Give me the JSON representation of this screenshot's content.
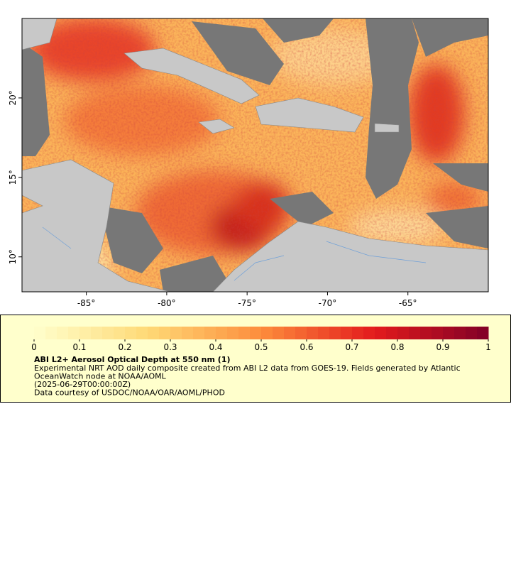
{
  "map": {
    "type": "map",
    "xlim": [
      -89,
      -60
    ],
    "ylim": [
      7.8,
      25
    ],
    "xticks": [
      {
        "value": -85,
        "label": "-85°"
      },
      {
        "value": -80,
        "label": "-80°"
      },
      {
        "value": -75,
        "label": "-75°"
      },
      {
        "value": -70,
        "label": "-70°"
      },
      {
        "value": -65,
        "label": "-65°"
      }
    ],
    "yticks": [
      {
        "value": 10,
        "label": "10°"
      },
      {
        "value": 15,
        "label": "15°"
      },
      {
        "value": 20,
        "label": "20°"
      }
    ]
  },
  "legend": {
    "colorbar": {
      "lim": [
        0,
        1
      ],
      "ticks": [
        0,
        0.1,
        0.2,
        0.3,
        0.4,
        0.5,
        0.6,
        0.7,
        0.8,
        0.9,
        1
      ],
      "colors": [
        "#ffffcc",
        "#fed976",
        "#fd8d3c",
        "#e31a1c",
        "#800026"
      ]
    },
    "title": "ABI L2+ Aerosol Optical Depth at 550 nm (1)",
    "lines": [
      "Experimental NRT AOD daily composite created from ABI L2 data from GOES-19. Fields generated by Atlantic",
      "OceanWatch node at NOAA/AOML",
      "(2025-06-29T00:00:00Z)",
      "Data courtesy of USDOC/NOAA/OAR/AOML/PHOD"
    ]
  }
}
